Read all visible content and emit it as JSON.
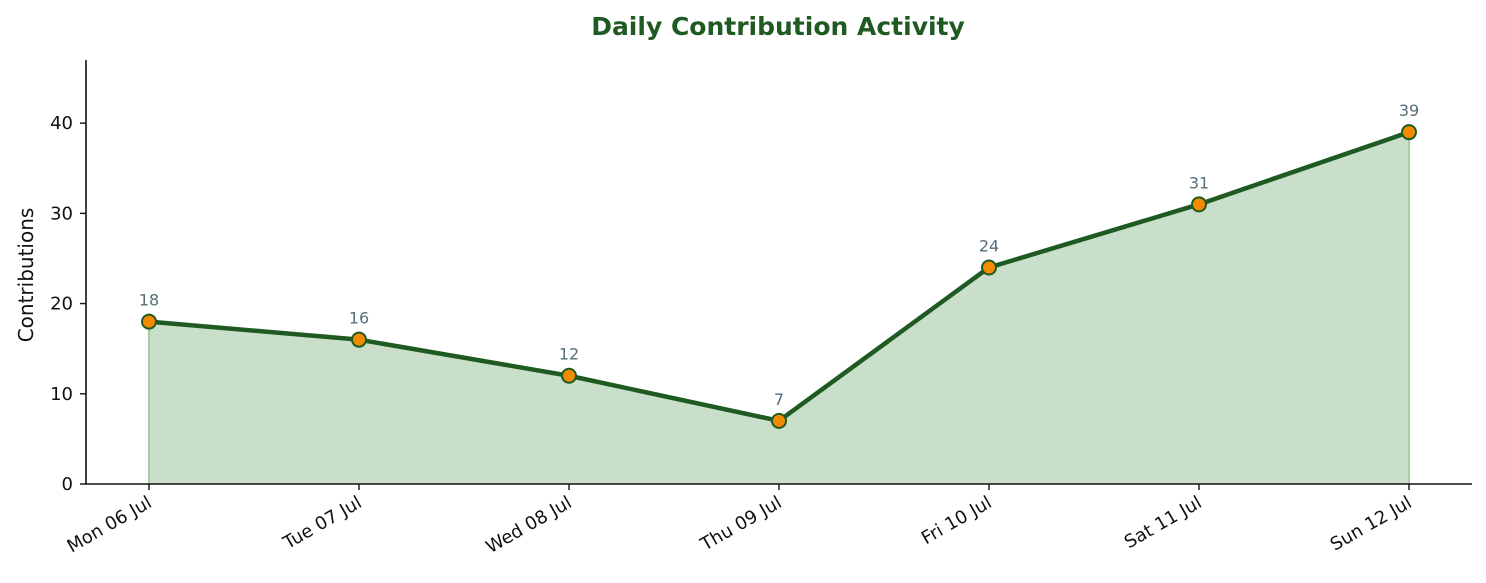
{
  "colors": {
    "title": "#1e5a22",
    "line": "#1e5a22",
    "area_fill": "#cadfca",
    "area_edge": "#a8cba8",
    "marker_fill": "#f28b00",
    "marker_edge": "#1e5a22",
    "data_label": "#566f7a",
    "axis": "#111111"
  },
  "chart_data": {
    "type": "area",
    "title": "Daily Contribution Activity",
    "xlabel": "",
    "ylabel": "Contributions",
    "categories": [
      "Mon 06 Jul",
      "Tue 07 Jul",
      "Wed 08 Jul",
      "Thu 09 Jul",
      "Fri 10 Jul",
      "Sat 11 Jul",
      "Sun 12 Jul"
    ],
    "values": [
      18,
      16,
      12,
      7,
      24,
      31,
      39
    ],
    "data_labels": [
      "18",
      "16",
      "12",
      "7",
      "24",
      "31",
      "39"
    ],
    "yticks": [
      0,
      10,
      20,
      30,
      40
    ],
    "ytick_labels": [
      "0",
      "10",
      "20",
      "30",
      "40"
    ],
    "ylim": [
      0,
      47
    ],
    "grid": false,
    "legend": "none",
    "markers": true
  }
}
